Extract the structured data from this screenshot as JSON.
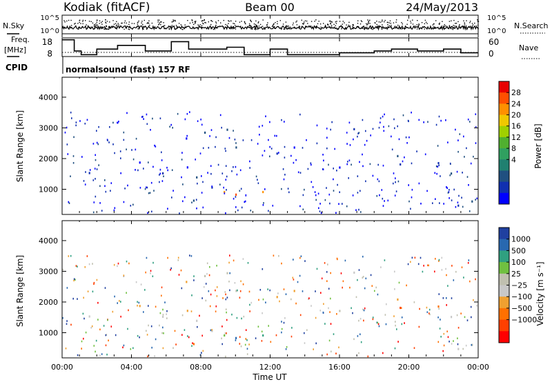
{
  "header": {
    "station": "Kodiak (fitACF)",
    "beam": "Beam 00",
    "date": "24/May/2013"
  },
  "sky_panel": {
    "left_label": "N.Sky",
    "right_label": "N.Search",
    "left_ticks": [
      "10^5",
      "10^0"
    ],
    "right_ticks": [
      "10^5",
      "10^0"
    ]
  },
  "freq_panel": {
    "left_label_1": "Freq.",
    "left_label_2": "[MHz]",
    "right_label": "Nave",
    "left_ticks": [
      "18",
      "8"
    ],
    "right_ticks": [
      "60",
      "0"
    ]
  },
  "cpid": {
    "label": "CPID",
    "program": "normalsound (fast) 157 RF"
  },
  "chart_data": [
    {
      "type": "heatmap",
      "panel": "power",
      "ylabel": "Slant Range [km]",
      "yticks": [
        1000,
        2000,
        3000,
        4000
      ],
      "ylim": [
        180,
        4650
      ],
      "xlim": [
        0,
        24
      ],
      "colorbar": {
        "label": "Power [dB]",
        "ticks": [
          "28",
          "24",
          "20",
          "16",
          "12",
          "8",
          "4"
        ],
        "colors": [
          "#e80000",
          "#ff5000",
          "#ff9000",
          "#f0c800",
          "#a0d000",
          "#50b030",
          "#30a060",
          "#208070",
          "#205080",
          "#1030b0",
          "#0000ff"
        ]
      }
    },
    {
      "type": "heatmap",
      "panel": "velocity",
      "ylabel": "Slant Range [km]",
      "yticks": [
        1000,
        2000,
        3000,
        4000
      ],
      "ylim": [
        180,
        4650
      ],
      "xlim": [
        0,
        24
      ],
      "xlabel": "Time UT",
      "xticks": [
        "00:00",
        "04:00",
        "08:00",
        "12:00",
        "16:00",
        "20:00",
        "00:00"
      ],
      "colorbar": {
        "label": "Velocity [m s⁻¹]",
        "ticks": [
          "1000",
          "500",
          "100",
          "25",
          "−25",
          "−100",
          "−500",
          "−1000"
        ],
        "colors": [
          "#2040a0",
          "#2868b0",
          "#30a080",
          "#70c040",
          "#c0c0b0",
          "#c8c8c8",
          "#f0a030",
          "#ff7000",
          "#ff4000",
          "#ff0000"
        ]
      }
    }
  ]
}
